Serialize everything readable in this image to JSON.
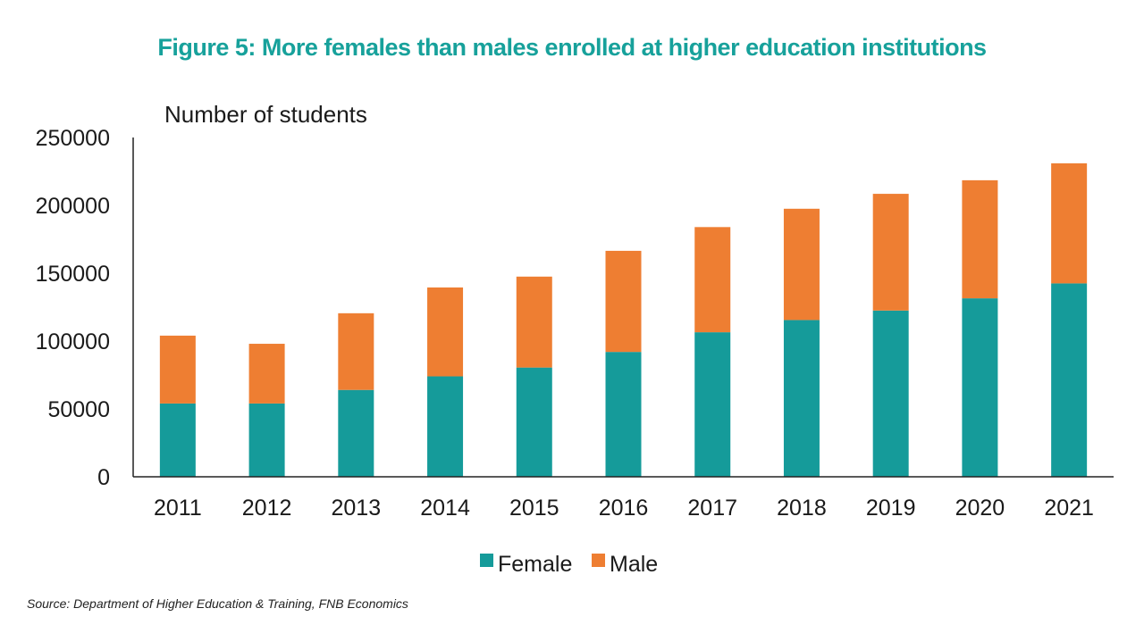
{
  "colors": {
    "title": "#17a19b",
    "female": "#159b9a",
    "male": "#ee7e32",
    "axis": "#222222",
    "text": "#1a1a1a"
  },
  "source": "Source: Department of Higher Education & Training, FNB Economics",
  "chart_data": {
    "type": "bar",
    "stacked": true,
    "title": "Figure 5: More females than males enrolled at higher education institutions",
    "ylabel": "Number of students",
    "xlabel": "",
    "ylim": [
      0,
      250000
    ],
    "yticks": [
      {
        "value": 0,
        "label": "0"
      },
      {
        "value": 50000,
        "label": "50000"
      },
      {
        "value": 100000,
        "label": "100000"
      },
      {
        "value": 150000,
        "label": "150000"
      },
      {
        "value": 200000,
        "label": "200000"
      },
      {
        "value": 250000,
        "label": "250000"
      }
    ],
    "grid": false,
    "legend_position": "bottom",
    "categories": [
      "2011",
      "2012",
      "2013",
      "2014",
      "2015",
      "2016",
      "2017",
      "2018",
      "2019",
      "2020",
      "2021"
    ],
    "series": [
      {
        "name": "Female",
        "values": [
          54000,
          54000,
          64000,
          74000,
          80500,
          92000,
          106500,
          115500,
          122500,
          131500,
          142500
        ]
      },
      {
        "name": "Male",
        "values": [
          50000,
          44000,
          56500,
          65500,
          67000,
          74500,
          77500,
          82000,
          86000,
          87000,
          88500
        ]
      }
    ]
  }
}
